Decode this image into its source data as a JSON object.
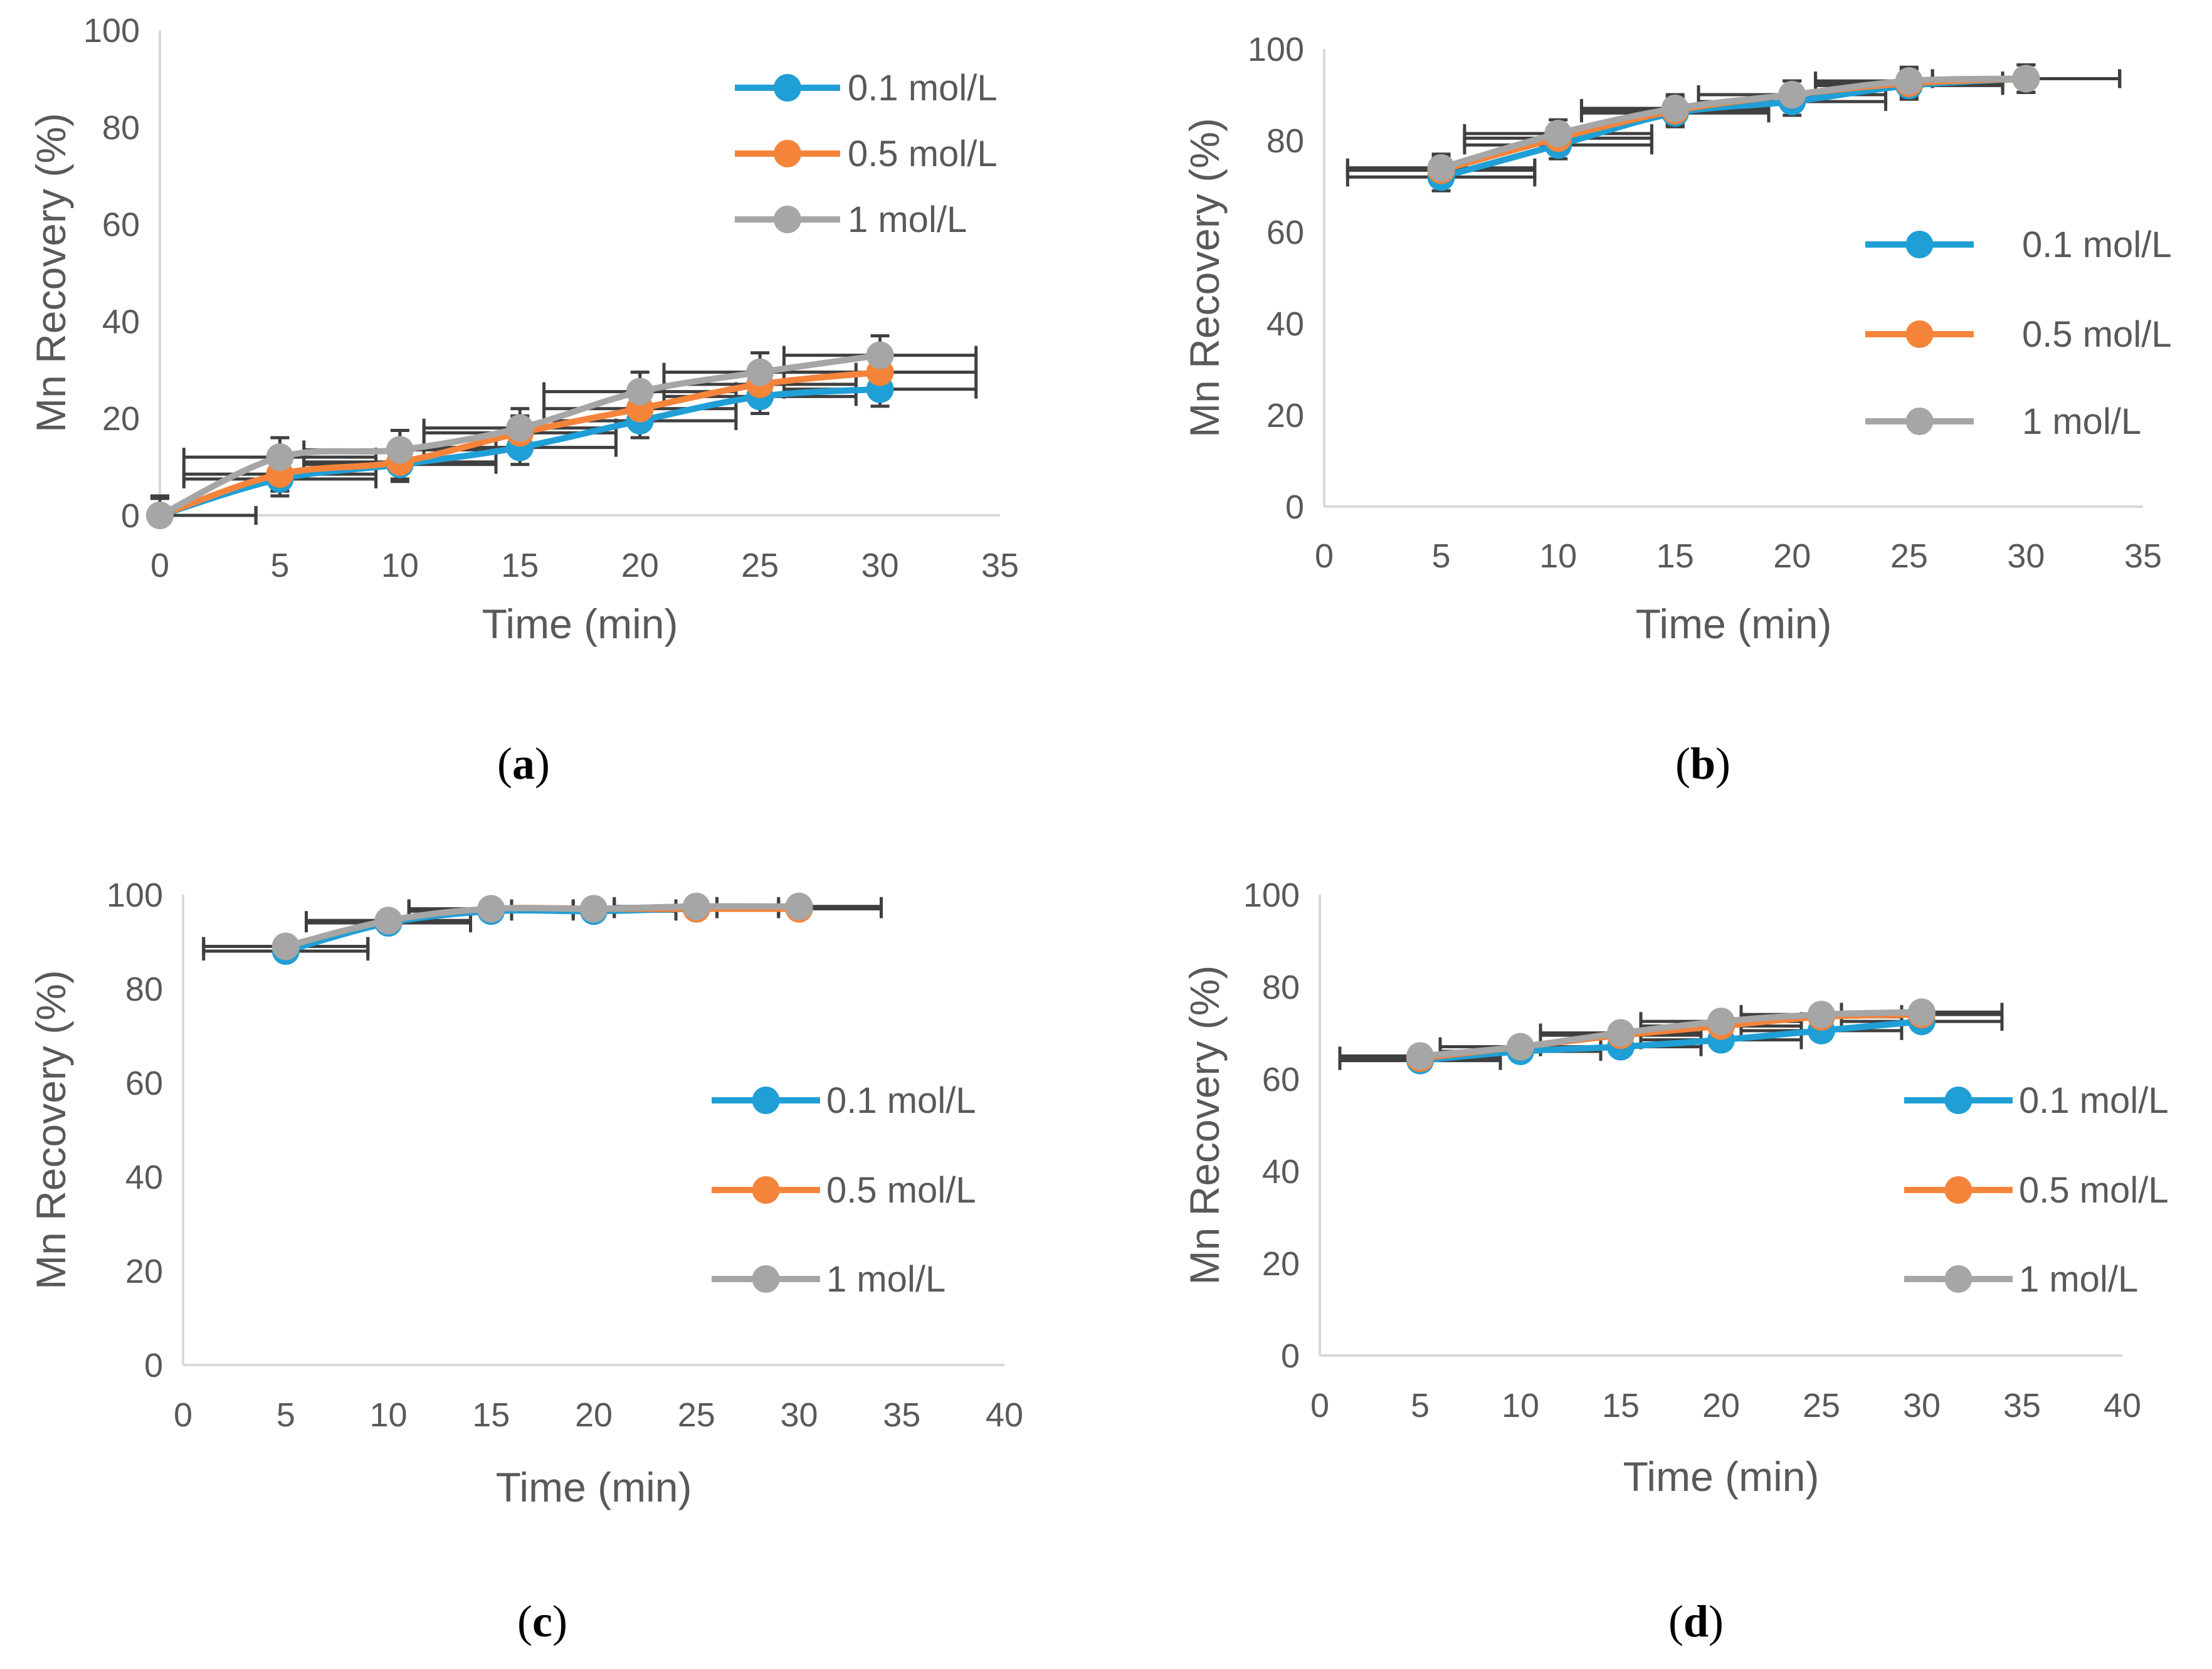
{
  "colors": {
    "series_1": "#1f9fd6",
    "series_2": "#f5843b",
    "series_3": "#a6a6a6",
    "axis": "#d9d9d9",
    "error_bar": "#3f3f3f",
    "text": "#595959"
  },
  "chart_data": [
    {
      "type": "line",
      "panel_label": "a",
      "xlabel": "Time (min)",
      "ylabel": "Mn Recovery (%)",
      "xlim": [
        0,
        35
      ],
      "ylim": [
        0,
        100
      ],
      "x_ticks": [
        "0",
        "5",
        "10",
        "15",
        "20",
        "25",
        "30",
        "35"
      ],
      "y_ticks": [
        "0",
        "20",
        "40",
        "60",
        "80",
        "100"
      ],
      "legend_position": "top-right",
      "x": [
        0,
        5,
        10,
        15,
        20,
        25,
        30
      ],
      "series": [
        {
          "name": "0.1 mol/L",
          "values": [
            0,
            7.5,
            10.5,
            14,
            19.5,
            24.5,
            26
          ],
          "y_err": 3.5,
          "x_err": 4
        },
        {
          "name": "0.5 mol/L",
          "values": [
            0,
            8.5,
            11,
            17,
            22,
            27,
            29.5
          ],
          "y_err": 3.5,
          "x_err": 4
        },
        {
          "name": "1 mol/L",
          "values": [
            0,
            12,
            13.5,
            18,
            25.5,
            29.5,
            33
          ],
          "y_err": 4,
          "x_err": 4
        }
      ]
    },
    {
      "type": "line",
      "panel_label": "b",
      "xlabel": "Time (min)",
      "ylabel": "Mn Recovery (%)",
      "xlim": [
        0,
        35
      ],
      "ylim": [
        0,
        100
      ],
      "x_ticks": [
        "0",
        "5",
        "10",
        "15",
        "20",
        "25",
        "30",
        "35"
      ],
      "y_ticks": [
        "0",
        "20",
        "40",
        "60",
        "80",
        "100"
      ],
      "legend_position": "right",
      "x": [
        5,
        10,
        15,
        20,
        25,
        30
      ],
      "series": [
        {
          "name": "0.1 mol/L",
          "values": [
            72,
            79,
            86,
            88.5,
            92,
            93.5
          ],
          "y_err": 3,
          "x_err": 4
        },
        {
          "name": "0.5 mol/L",
          "values": [
            73.5,
            80.5,
            86.5,
            90,
            92.5,
            93.5
          ],
          "y_err": 3,
          "x_err": 4
        },
        {
          "name": "1 mol/L",
          "values": [
            74,
            81.5,
            87,
            90,
            93,
            93.5
          ],
          "y_err": 3,
          "x_err": 4
        }
      ]
    },
    {
      "type": "line",
      "panel_label": "c",
      "xlabel": "Time (min)",
      "ylabel": "Mn Recovery (%)",
      "xlim": [
        0,
        40
      ],
      "ylim": [
        0,
        100
      ],
      "x_ticks": [
        "0",
        "5",
        "10",
        "15",
        "20",
        "25",
        "30",
        "35",
        "40"
      ],
      "y_ticks": [
        "0",
        "20",
        "40",
        "60",
        "80",
        "100"
      ],
      "legend_position": "right",
      "x": [
        5,
        10,
        15,
        20,
        25,
        30
      ],
      "series": [
        {
          "name": "0.1 mol/L",
          "values": [
            88,
            94,
            96.5,
            96.5,
            97,
            97
          ],
          "y_err": 1,
          "x_err": 4
        },
        {
          "name": "0.5 mol/L",
          "values": [
            89,
            94.5,
            97,
            97,
            97,
            97
          ],
          "y_err": 1,
          "x_err": 4
        },
        {
          "name": "1 mol/L",
          "values": [
            89,
            94.5,
            97,
            97,
            97.5,
            97.5
          ],
          "y_err": 1,
          "x_err": 4
        }
      ]
    },
    {
      "type": "line",
      "panel_label": "d",
      "xlabel": "Time (min)",
      "ylabel": "Mn Recovery (%)",
      "xlim": [
        0,
        40
      ],
      "ylim": [
        0,
        100
      ],
      "x_ticks": [
        "0",
        "5",
        "10",
        "15",
        "20",
        "25",
        "30",
        "35",
        "40"
      ],
      "y_ticks": [
        "0",
        "20",
        "40",
        "60",
        "80",
        "100"
      ],
      "legend_position": "right",
      "x": [
        5,
        10,
        15,
        20,
        25,
        30
      ],
      "series": [
        {
          "name": "0.1 mol/L",
          "values": [
            64,
            66,
            67,
            68.5,
            70.5,
            72.5
          ],
          "y_err": 1.5,
          "x_err": 4
        },
        {
          "name": "0.5 mol/L",
          "values": [
            64.5,
            67,
            69.5,
            71.5,
            73.5,
            74
          ],
          "y_err": 1.5,
          "x_err": 4
        },
        {
          "name": "1 mol/L",
          "values": [
            65,
            67,
            70,
            72.5,
            74,
            74.5
          ],
          "y_err": 1.5,
          "x_err": 4
        }
      ]
    }
  ]
}
